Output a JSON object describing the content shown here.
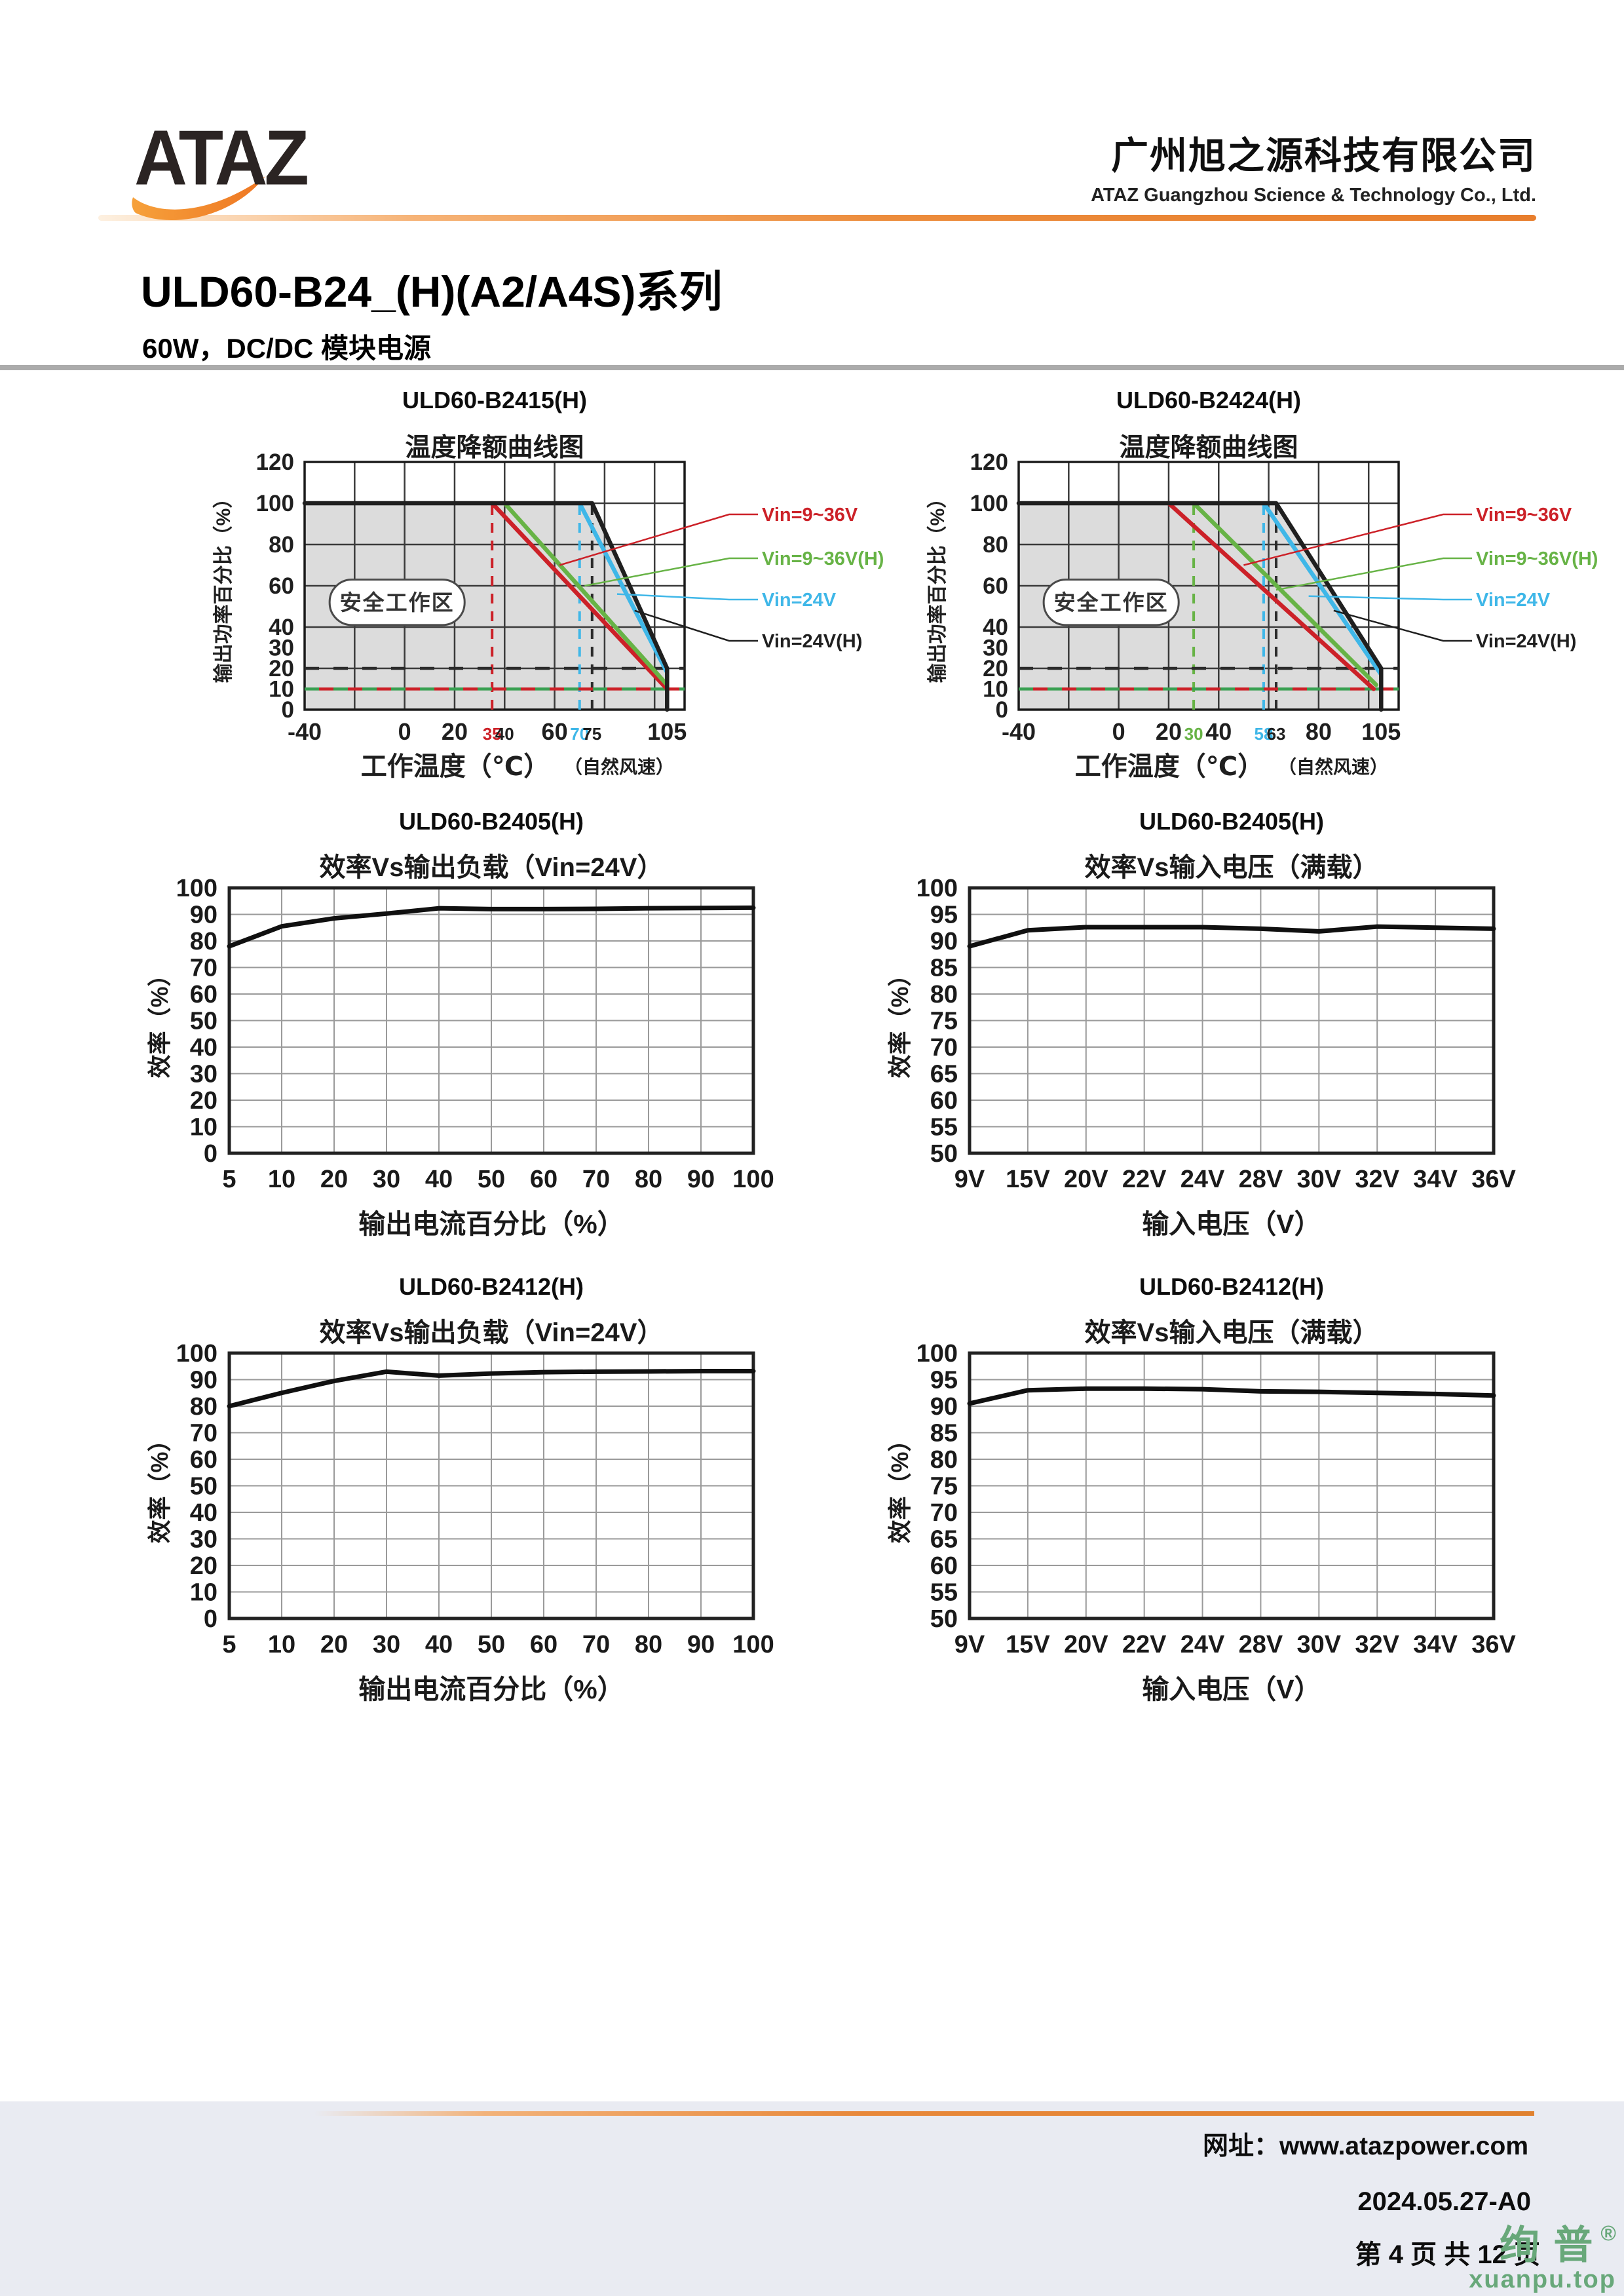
{
  "header": {
    "logo_text": "ATAZ",
    "company_cn": "广州旭之源科技有限公司",
    "company_en": "ATAZ Guangzhou Science & Technology Co., Ltd.",
    "accent_color": "#e8873a",
    "logo_swoosh_from": "#f6a13b",
    "logo_swoosh_to": "#ee7623"
  },
  "title_block": {
    "title": "ULD60-B24_(H)(A2/A4S)系列",
    "subtitle": "60W，DC/DC 模块电源"
  },
  "footer": {
    "website_label": "网址：",
    "website": "www.atazpower.com",
    "revision": "2024.05.27-A0",
    "page_info": "第 4 页 共 12 页",
    "watermark": "绚普",
    "watermark_reg": "®",
    "watermark_site": "xuanpu.top",
    "watermark_color": "#68a87a",
    "band_color": "#e9ebf2"
  },
  "chart_data": [
    {
      "type": "line",
      "model": "ULD60-B2415(H)",
      "title": "温度降额曲线图",
      "xlabel": "工作温度（℃）",
      "xlabel_note": "（自然风速）",
      "ylabel": "输出功率百分比（%）",
      "xlim": [
        -40,
        112
      ],
      "ylim": [
        0,
        120
      ],
      "x_gridlines": [
        -20,
        0,
        20,
        40,
        60,
        80,
        100
      ],
      "y_gridlines": [
        20,
        40,
        60,
        80,
        100
      ],
      "y_ticks": [
        0,
        10,
        20,
        30,
        40,
        60,
        80,
        100,
        120
      ],
      "x_ticks": [
        {
          "v": -40,
          "label": "-40"
        },
        {
          "v": 0,
          "label": "0"
        },
        {
          "v": 20,
          "label": "20"
        },
        {
          "v": 35,
          "label": "35",
          "color": "#cc2128",
          "small": true
        },
        {
          "v": 40,
          "label": "40",
          "small": true
        },
        {
          "v": 60,
          "label": "60"
        },
        {
          "v": 70,
          "label": "70",
          "color": "#3fb7e8",
          "small": true
        },
        {
          "v": 75,
          "label": "75",
          "small": true
        },
        {
          "v": 105,
          "label": "105"
        }
      ],
      "safe_label": "安全工作区",
      "safe_region": [
        [
          -40,
          100
        ],
        [
          75,
          100
        ],
        [
          105,
          20
        ],
        [
          105,
          0
        ],
        [
          -40,
          0
        ]
      ],
      "series": [
        {
          "name": "Vin=9~36V",
          "color": "#cc2128",
          "points": [
            [
              35,
              100
            ],
            [
              105,
              10
            ]
          ],
          "anchor": [
            62,
            70
          ]
        },
        {
          "name": "Vin=9~36V(H)",
          "color": "#67b346",
          "points": [
            [
              40,
              100
            ],
            [
              105,
              12
            ]
          ],
          "anchor": [
            72,
            60
          ]
        },
        {
          "name": "Vin=24V",
          "color": "#3fb7e8",
          "points": [
            [
              70,
              100
            ],
            [
              105,
              18
            ]
          ],
          "anchor": [
            85,
            56
          ]
        },
        {
          "name": "Vin=24V(H)",
          "color": "#1f1f1f",
          "points": [
            [
              -40,
              100
            ],
            [
              75,
              100
            ],
            [
              105,
              20
            ],
            [
              105,
              0
            ]
          ],
          "anchor": [
            92,
            48
          ]
        }
      ],
      "dashed_v": [
        {
          "x": 35,
          "color": "#cc2128"
        },
        {
          "x": 70,
          "color": "#3fb7e8"
        },
        {
          "x": 75,
          "color": "#2b2b2b"
        }
      ],
      "dashed_h": [
        {
          "y": 20,
          "color": "#2b2b2b",
          "offset": 0
        },
        {
          "y": 10,
          "color": "#3aa052",
          "offset": 0
        },
        {
          "y": 10,
          "color": "#cc2128",
          "offset": 22
        }
      ]
    },
    {
      "type": "line",
      "model": "ULD60-B2424(H)",
      "title": "温度降额曲线图",
      "xlabel": "工作温度（℃）",
      "xlabel_note": "（自然风速）",
      "ylabel": "输出功率百分比（%）",
      "xlim": [
        -40,
        112
      ],
      "ylim": [
        0,
        120
      ],
      "x_gridlines": [
        -20,
        0,
        20,
        40,
        60,
        80,
        100
      ],
      "y_gridlines": [
        20,
        40,
        60,
        80,
        100
      ],
      "y_ticks": [
        0,
        10,
        20,
        30,
        40,
        60,
        80,
        100,
        120
      ],
      "x_ticks": [
        {
          "v": -40,
          "label": "-40"
        },
        {
          "v": 0,
          "label": "0"
        },
        {
          "v": 20,
          "label": "20"
        },
        {
          "v": 30,
          "label": "30",
          "color": "#67b346",
          "small": true
        },
        {
          "v": 40,
          "label": "40"
        },
        {
          "v": 58,
          "label": "58",
          "color": "#3fb7e8",
          "small": true
        },
        {
          "v": 63,
          "label": "63",
          "small": true
        },
        {
          "v": 80,
          "label": "80"
        },
        {
          "v": 105,
          "label": "105"
        }
      ],
      "safe_label": "安全工作区",
      "safe_region": [
        [
          -40,
          100
        ],
        [
          63,
          100
        ],
        [
          105,
          20
        ],
        [
          105,
          0
        ],
        [
          -40,
          0
        ]
      ],
      "series": [
        {
          "name": "Vin=9~36V",
          "color": "#cc2128",
          "points": [
            [
              20,
              100
            ],
            [
              102,
              10
            ]
          ],
          "anchor": [
            50,
            70
          ]
        },
        {
          "name": "Vin=9~36V(H)",
          "color": "#67b346",
          "points": [
            [
              30,
              100
            ],
            [
              103,
              12
            ]
          ],
          "anchor": [
            63,
            58
          ]
        },
        {
          "name": "Vin=24V",
          "color": "#3fb7e8",
          "points": [
            [
              58,
              100
            ],
            [
              105,
              17
            ]
          ],
          "anchor": [
            76,
            55
          ]
        },
        {
          "name": "Vin=24V(H)",
          "color": "#1f1f1f",
          "points": [
            [
              -40,
              100
            ],
            [
              63,
              100
            ],
            [
              105,
              20
            ],
            [
              105,
              0
            ]
          ],
          "anchor": [
            86,
            48
          ]
        }
      ],
      "dashed_v": [
        {
          "x": 30,
          "color": "#67b346"
        },
        {
          "x": 58,
          "color": "#3fb7e8"
        },
        {
          "x": 63,
          "color": "#2b2b2b"
        }
      ],
      "dashed_h": [
        {
          "y": 20,
          "color": "#2b2b2b",
          "offset": 0
        },
        {
          "y": 10,
          "color": "#3aa052",
          "offset": 0
        },
        {
          "y": 10,
          "color": "#cc2128",
          "offset": 22
        }
      ]
    },
    {
      "type": "line",
      "model": "ULD60-B2405(H)",
      "title": "效率Vs输出负载（Vin=24V）",
      "xlabel": "输出电流百分比（%）",
      "ylabel": "效率（%）",
      "categories": [
        "5",
        "10",
        "20",
        "30",
        "40",
        "50",
        "60",
        "70",
        "80",
        "90",
        "100"
      ],
      "values": [
        78,
        85.5,
        88.5,
        90.3,
        92.3,
        92,
        92,
        92.1,
        92.3,
        92.4,
        92.5
      ],
      "ylim": [
        0,
        100
      ],
      "y_ticks": [
        0,
        10,
        20,
        30,
        40,
        50,
        60,
        70,
        80,
        90,
        100
      ]
    },
    {
      "type": "line",
      "model": "ULD60-B2405(H)",
      "title": "效率Vs输入电压（满载）",
      "xlabel": "输入电压（V）",
      "ylabel": "效率（%）",
      "categories": [
        "9V",
        "15V",
        "20V",
        "22V",
        "24V",
        "28V",
        "30V",
        "32V",
        "34V",
        "36V"
      ],
      "values": [
        89,
        92,
        92.6,
        92.6,
        92.6,
        92.3,
        91.8,
        92.7,
        92.5,
        92.3
      ],
      "ylim": [
        50,
        100
      ],
      "y_ticks": [
        50,
        55,
        60,
        65,
        70,
        75,
        80,
        85,
        90,
        95,
        100
      ]
    },
    {
      "type": "line",
      "model": "ULD60-B2412(H)",
      "title": "效率Vs输出负载（Vin=24V）",
      "xlabel": "输出电流百分比（%）",
      "ylabel": "效率（%）",
      "categories": [
        "5",
        "10",
        "20",
        "30",
        "40",
        "50",
        "60",
        "70",
        "80",
        "90",
        "100"
      ],
      "values": [
        80,
        85,
        89.5,
        93,
        91.5,
        92.3,
        92.8,
        93,
        93.1,
        93.2,
        93.2
      ],
      "ylim": [
        0,
        100
      ],
      "y_ticks": [
        0,
        10,
        20,
        30,
        40,
        50,
        60,
        70,
        80,
        90,
        100
      ]
    },
    {
      "type": "line",
      "model": "ULD60-B2412(H)",
      "title": "效率Vs输入电压（满载）",
      "xlabel": "输入电压（V）",
      "ylabel": "效率（%）",
      "categories": [
        "9V",
        "15V",
        "20V",
        "22V",
        "24V",
        "28V",
        "30V",
        "32V",
        "34V",
        "36V"
      ],
      "values": [
        90.5,
        93,
        93.3,
        93.3,
        93.2,
        92.8,
        92.7,
        92.5,
        92.3,
        92
      ],
      "ylim": [
        50,
        100
      ],
      "y_ticks": [
        50,
        55,
        60,
        65,
        70,
        75,
        80,
        85,
        90,
        95,
        100
      ]
    }
  ]
}
